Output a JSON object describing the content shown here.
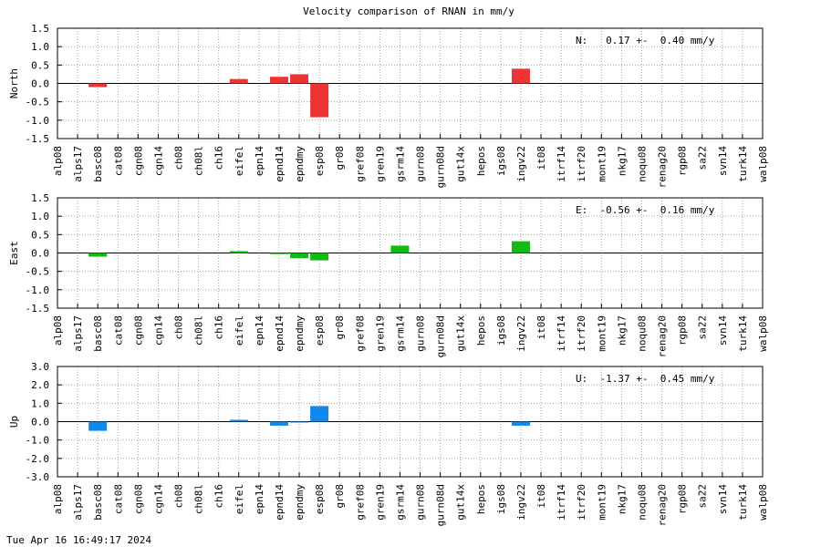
{
  "timestamp": "Tue Apr 16 16:49:17 2024",
  "chart_data": {
    "type": "bar",
    "title": "Velocity comparison of RNAN in mm/y",
    "categories": [
      "alp08",
      "alps17",
      "basc08",
      "cat08",
      "cgn08",
      "cgn14",
      "ch08",
      "ch08l",
      "ch16",
      "eifel",
      "epn14",
      "epnd14",
      "epndmy",
      "esp08",
      "gr08",
      "gref08",
      "gren19",
      "gsrm14",
      "gurn08",
      "gurn08d",
      "gut14x",
      "hepos",
      "igs08",
      "ingv22",
      "it08",
      "itrf14",
      "itrf20",
      "mont19",
      "nkg17",
      "noqu08",
      "renag20",
      "rgp08",
      "sa22",
      "svn14",
      "turk14",
      "walp08"
    ],
    "grid": true,
    "panels": [
      {
        "ylabel": "North",
        "ylim": [
          -1.5,
          1.5
        ],
        "yticks": [
          -1.5,
          -1.0,
          -0.5,
          0.0,
          0.5,
          1.0,
          1.5
        ],
        "ytick_labels": [
          "-1.5",
          "-1.0",
          "-0.5",
          "0.0",
          "0.5",
          "1.0",
          "1.5"
        ],
        "color": "#ee3333",
        "annotation": "N:   0.17 +-  0.40 mm/y",
        "values": [
          0,
          0,
          -0.1,
          0,
          0,
          0,
          0,
          0,
          0,
          0.12,
          0,
          0.18,
          0.25,
          -0.92,
          0,
          0,
          0,
          0,
          0,
          0,
          0,
          0,
          0,
          0.4,
          0,
          0,
          0,
          0,
          0,
          0,
          0,
          0,
          0,
          0,
          0,
          0
        ]
      },
      {
        "ylabel": "East",
        "ylim": [
          -1.5,
          1.5
        ],
        "yticks": [
          -1.5,
          -1.0,
          -0.5,
          0.0,
          0.5,
          1.0,
          1.5
        ],
        "ytick_labels": [
          "-1.5",
          "-1.0",
          "-0.5",
          "0.0",
          "0.5",
          "1.0",
          "1.5"
        ],
        "color": "#11bb11",
        "annotation": "E:  -0.56 +-  0.16 mm/y",
        "values": [
          0,
          0,
          -0.1,
          0,
          0,
          0,
          0,
          0,
          0,
          0.05,
          0,
          -0.03,
          -0.14,
          -0.2,
          0,
          0,
          0,
          0.2,
          0,
          0,
          0,
          0,
          0,
          0.32,
          0,
          0,
          0,
          0,
          0,
          0,
          0,
          0,
          0,
          0,
          0,
          0
        ]
      },
      {
        "ylabel": "Up",
        "ylim": [
          -3.0,
          3.0
        ],
        "yticks": [
          -3.0,
          -2.0,
          -1.0,
          0.0,
          1.0,
          2.0,
          3.0
        ],
        "ytick_labels": [
          "-3.0",
          "-2.0",
          "-1.0",
          "0.0",
          "1.0",
          "2.0",
          "3.0"
        ],
        "color": "#1188ee",
        "annotation": "U:  -1.37 +-  0.45 mm/y",
        "values": [
          0,
          0,
          -0.5,
          0,
          0,
          0,
          0,
          0,
          0,
          0.1,
          0,
          -0.22,
          -0.05,
          0.85,
          0,
          0,
          0,
          0,
          0,
          0,
          0,
          0,
          0,
          -0.22,
          0,
          0,
          0,
          0,
          0,
          0,
          0,
          0,
          0,
          0,
          0,
          0
        ]
      }
    ]
  }
}
